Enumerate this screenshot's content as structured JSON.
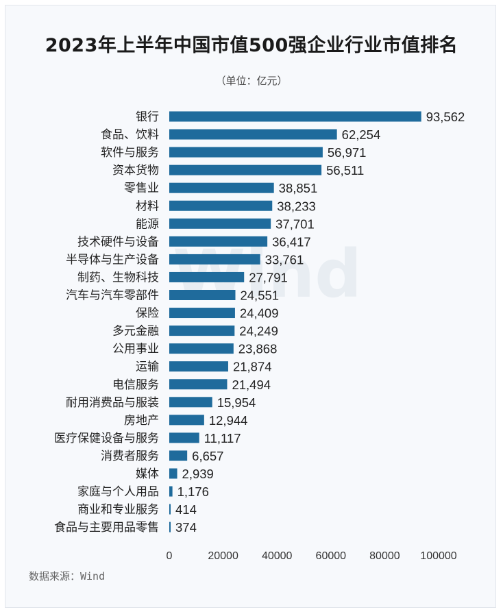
{
  "title": "2023年上半年中国市值500强企业行业市值排名",
  "subtitle": "（单位：亿元）",
  "source": "数据来源：Wind",
  "watermark": "Wind",
  "colors": {
    "bar": "#1f6b9c",
    "text": "#222222",
    "background": "#f7f9fc"
  },
  "chart_data": {
    "type": "bar",
    "orientation": "horizontal",
    "categories": [
      "银行",
      "食品、饮料",
      "软件与服务",
      "资本货物",
      "零售业",
      "材料",
      "能源",
      "技术硬件与设备",
      "半导体与生产设备",
      "制药、生物科技",
      "汽车与汽车零部件",
      "保险",
      "多元金融",
      "公用事业",
      "运输",
      "电信服务",
      "耐用消费品与服装",
      "房地产",
      "医疗保健设备与服务",
      "消费者服务",
      "媒体",
      "家庭与个人用品",
      "商业和专业服务",
      "食品与主要用品零售"
    ],
    "values": [
      93562,
      62254,
      56971,
      56511,
      38851,
      38233,
      37701,
      36417,
      33761,
      27791,
      24551,
      24409,
      24249,
      23868,
      21874,
      21494,
      15954,
      12944,
      11117,
      6657,
      2939,
      1176,
      414,
      374
    ],
    "value_labels": [
      "93,562",
      "62,254",
      "56,971",
      "56,511",
      "38,851",
      "38,233",
      "37,701",
      "36,417",
      "33,761",
      "27,791",
      "24,551",
      "24,409",
      "24,249",
      "23,868",
      "21,874",
      "21,494",
      "15,954",
      "12,944",
      "11,117",
      "6,657",
      "2,939",
      "1,176",
      "414",
      "374"
    ],
    "x_ticks": [
      0,
      20000,
      40000,
      60000,
      80000,
      100000
    ],
    "x_tick_labels": [
      "0",
      "20000",
      "40000",
      "60000",
      "80000",
      "100000"
    ],
    "xlim": [
      0,
      100000
    ],
    "grid": false,
    "legend": "none"
  }
}
